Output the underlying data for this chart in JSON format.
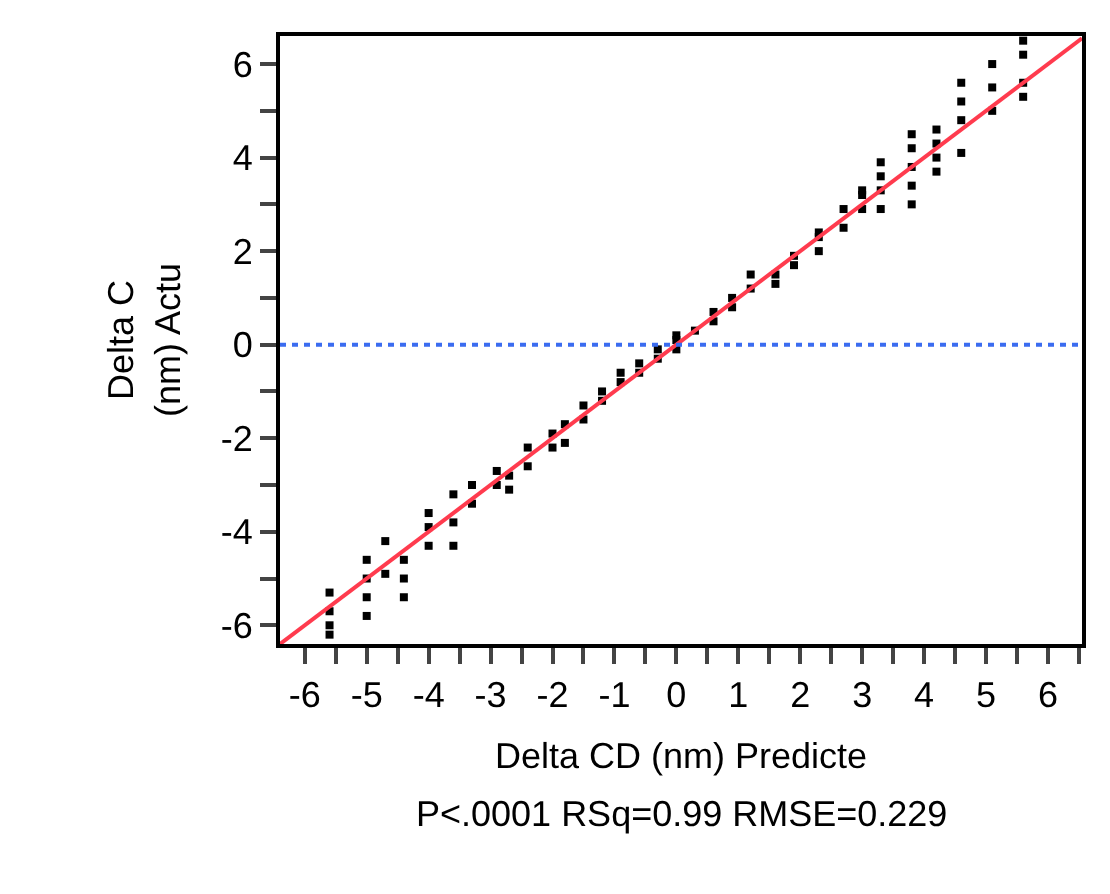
{
  "chart_data": {
    "type": "scatter",
    "xlabel": "Delta CD (nm) Predicte",
    "ylabel": "Delta C\n(nm) Actu",
    "annotations": [
      "P<.0001 RSq=0.99 RMSE=0.229"
    ],
    "series": [
      {
        "color": "#000000",
        "marker": "square",
        "x": [
          -5.6,
          -5.6,
          -5.6,
          -5.6,
          -5.0,
          -5.0,
          -5.0,
          -5.0,
          -4.7,
          -4.7,
          -4.4,
          -4.4,
          -4.4,
          -4.0,
          -4.0,
          -4.0,
          -3.6,
          -3.6,
          -3.6,
          -3.3,
          -3.3,
          -2.9,
          -2.9,
          -2.7,
          -2.7,
          -2.4,
          -2.4,
          -2.0,
          -2.0,
          -1.8,
          -1.8,
          -1.5,
          -1.5,
          -1.2,
          -1.2,
          -0.9,
          -0.9,
          -0.6,
          -0.6,
          -0.3,
          -0.3,
          0.0,
          0.0,
          0.0,
          0.3,
          0.6,
          0.6,
          0.9,
          0.9,
          1.2,
          1.2,
          1.6,
          1.6,
          1.9,
          1.9,
          2.3,
          2.3,
          2.3,
          2.7,
          2.7,
          3.0,
          3.0,
          3.0,
          3.3,
          3.3,
          3.3,
          3.3,
          3.8,
          3.8,
          3.8,
          3.8,
          3.8,
          4.2,
          4.2,
          4.2,
          4.2,
          4.6,
          4.6,
          4.6,
          4.6,
          5.1,
          5.1,
          5.1,
          5.6,
          5.6,
          5.6,
          5.6
        ],
        "values": [
          -5.3,
          -5.7,
          -6.0,
          -6.2,
          -4.6,
          -5.0,
          -5.4,
          -5.8,
          -4.2,
          -4.9,
          -4.6,
          -5.0,
          -5.4,
          -3.6,
          -3.9,
          -4.3,
          -3.2,
          -3.8,
          -4.3,
          -3.0,
          -3.4,
          -2.7,
          -3.0,
          -2.8,
          -3.1,
          -2.2,
          -2.6,
          -1.9,
          -2.2,
          -1.7,
          -2.1,
          -1.3,
          -1.6,
          -1.0,
          -1.2,
          -0.6,
          -0.8,
          -0.4,
          -0.6,
          -0.1,
          -0.3,
          0.1,
          -0.1,
          0.2,
          0.3,
          0.5,
          0.7,
          0.8,
          1.0,
          1.2,
          1.5,
          1.3,
          1.5,
          1.7,
          1.9,
          2.0,
          2.3,
          2.4,
          2.5,
          2.9,
          2.9,
          3.2,
          3.3,
          3.3,
          3.6,
          3.9,
          2.9,
          3.4,
          3.8,
          4.2,
          4.5,
          3.0,
          4.3,
          4.0,
          3.7,
          4.6,
          5.6,
          5.2,
          4.8,
          4.1,
          6.0,
          5.5,
          5.0,
          6.5,
          6.2,
          5.6,
          5.3
        ]
      },
      {
        "type": "line",
        "color": "#ff3b4e",
        "line_style": "solid",
        "x": [
          -6.4,
          6.55
        ],
        "values": [
          -6.4,
          6.55
        ]
      }
    ],
    "xlim": [
      -6.4,
      6.55
    ],
    "ylim": [
      -6.4,
      6.6
    ],
    "xticks": [
      -6,
      {
        "value": -5.5,
        "label": null
      },
      -5,
      {
        "value": -4.5,
        "label": null
      },
      -4,
      {
        "value": -3.5,
        "label": null
      },
      -3,
      {
        "value": -2.5,
        "label": null
      },
      -2,
      {
        "value": -1.5,
        "label": null
      },
      -1,
      {
        "value": -0.5,
        "label": null
      },
      0,
      {
        "value": 0.5,
        "label": null
      },
      1,
      {
        "value": 1.5,
        "label": null
      },
      2,
      {
        "value": 2.5,
        "label": null
      },
      3,
      {
        "value": 3.5,
        "label": null
      },
      4,
      {
        "value": 4.5,
        "label": null
      },
      5,
      {
        "value": 5.5,
        "label": null
      },
      6,
      {
        "value": 6.5,
        "label": null
      }
    ],
    "yticks": [
      -6,
      {
        "value": -5,
        "label": null
      },
      -4,
      {
        "value": -3,
        "label": null
      },
      -2,
      {
        "value": -1,
        "label": null
      },
      0,
      {
        "value": 1,
        "label": null
      },
      2,
      {
        "value": 3,
        "label": null
      },
      4,
      {
        "value": 5,
        "label": null
      },
      6
    ],
    "ref_lines": [
      {
        "axis": "y",
        "value": 0,
        "color": "#3b6cf0",
        "line_style": "dotted"
      }
    ]
  }
}
